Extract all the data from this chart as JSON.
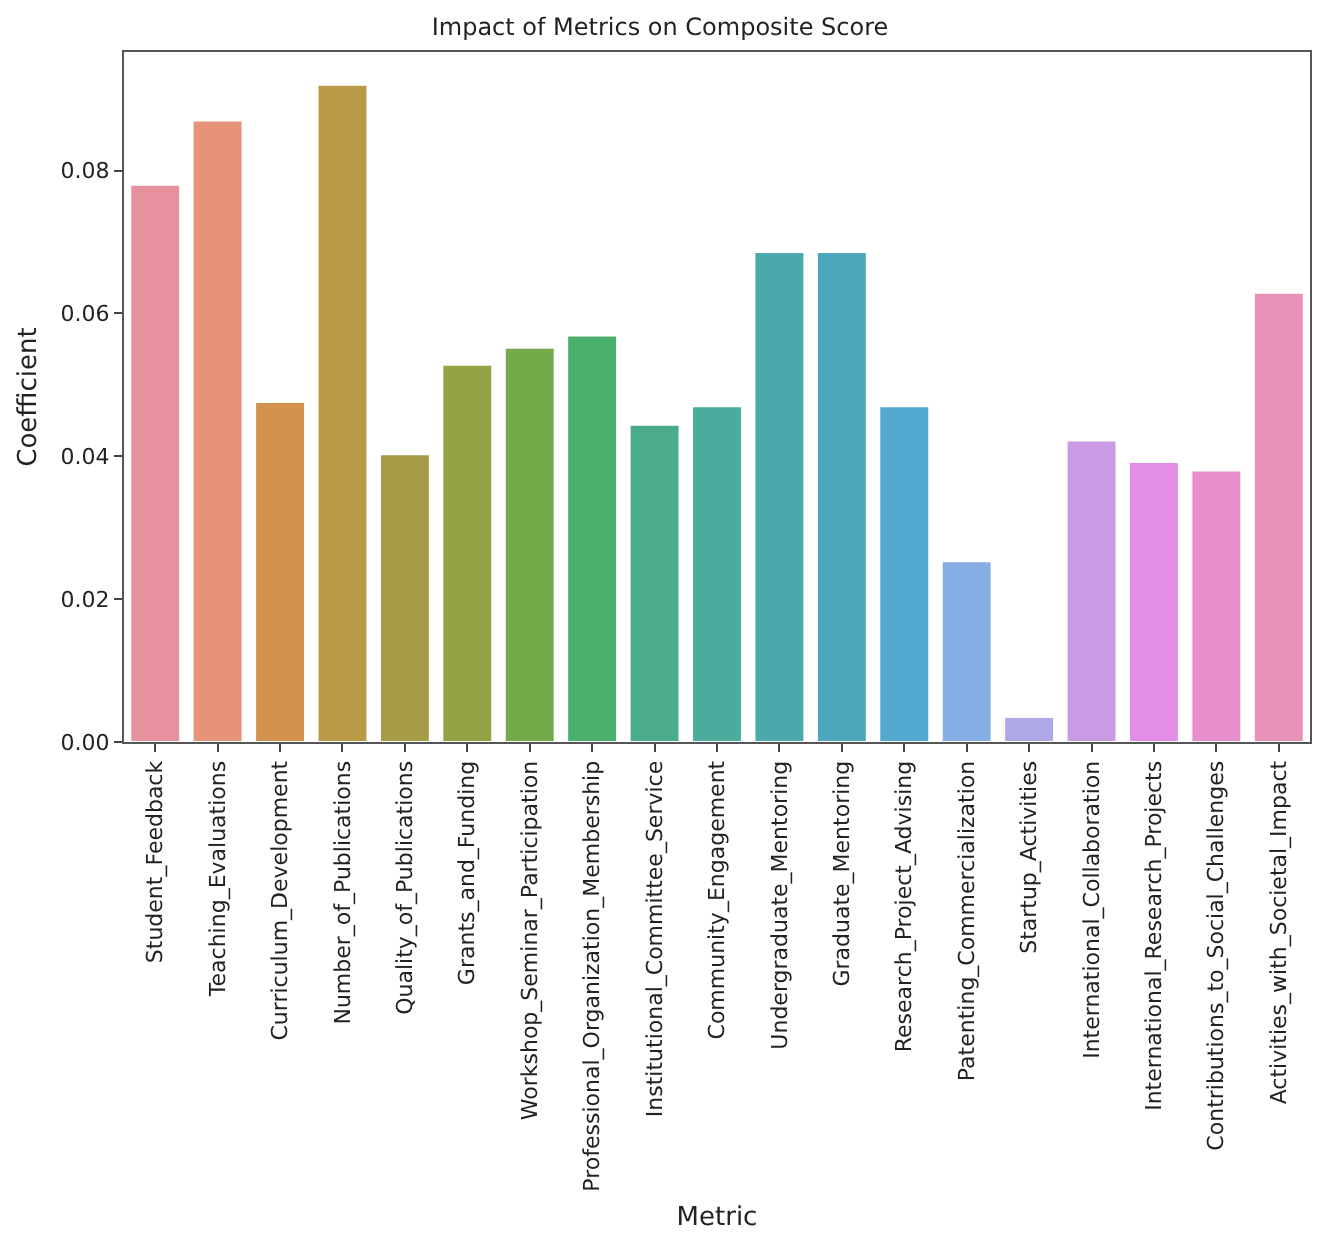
{
  "chart_data": {
    "type": "bar",
    "title": "Impact of Metrics on Composite Score",
    "xlabel": "Metric",
    "ylabel": "Coefficient",
    "categories": [
      "Student_Feedback",
      "Teaching_Evaluations",
      "Curriculum_Development",
      "Number_of_Publications",
      "Quality_of_Publications",
      "Grants_and_Funding",
      "Workshop_Seminar_Participation",
      "Professional_Organization_Membership",
      "Institutional_Committee_Service",
      "Community_Engagement",
      "Undergraduate_Mentoring",
      "Graduate_Mentoring",
      "Research_Project_Advising",
      "Patenting_Commercialization",
      "Startup_Activities",
      "International_Collaboration",
      "International_Research_Projects",
      "Contributions_to_Social_Challenges",
      "Activities_with_Societal_Impact"
    ],
    "values": [
      0.078,
      0.087,
      0.0476,
      0.092,
      0.0403,
      0.0528,
      0.0552,
      0.0569,
      0.0444,
      0.047,
      0.0686,
      0.0686,
      0.047,
      0.0253,
      0.0035,
      0.0422,
      0.0392,
      0.038,
      0.0629
    ],
    "colors": [
      "#e8919e",
      "#e6937a",
      "#d3924b",
      "#ba9a47",
      "#a69b46",
      "#93a346",
      "#71ab4a",
      "#4aaf6a",
      "#4aac8c",
      "#4bab9c",
      "#4ca9ab",
      "#4ea8bb",
      "#53aad0",
      "#86aee4",
      "#aea8e8",
      "#c99be4",
      "#e28de6",
      "#e88dcb",
      "#e992b7"
    ],
    "ylim": [
      0,
      0.0966
    ],
    "yticks": [
      {
        "value": 0,
        "label": "0.00"
      },
      {
        "value": 0.02,
        "label": "0.02"
      },
      {
        "value": 0.04,
        "label": "0.04"
      },
      {
        "value": 0.06,
        "label": "0.06"
      },
      {
        "value": 0.08,
        "label": "0.08"
      }
    ],
    "orientation": "vertical"
  }
}
